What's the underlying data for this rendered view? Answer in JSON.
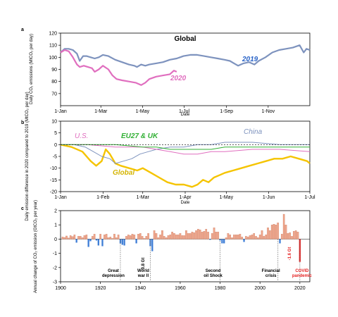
{
  "chart_data": [
    {
      "type": "line",
      "panel_label": "a",
      "title": "Global",
      "xlabel": "Date",
      "ylabel": "Daily CO₂ emissions (MtCO₂ per day)",
      "ylim": [
        60,
        120
      ],
      "yticks": [
        70,
        80,
        90,
        100,
        110,
        120
      ],
      "xticks": [
        "1-Jan",
        "1-Mar",
        "1-May",
        "1-Jul",
        "1-Sep",
        "1-Nov"
      ],
      "xtick_days": [
        0,
        59,
        120,
        181,
        243,
        304
      ],
      "xlim_days": [
        0,
        365
      ],
      "series": [
        {
          "name": "2019",
          "color": "#7e93be",
          "x": [
            0,
            6,
            12,
            18,
            24,
            28,
            33,
            38,
            44,
            50,
            56,
            62,
            70,
            80,
            90,
            100,
            108,
            112,
            118,
            124,
            130,
            140,
            150,
            160,
            170,
            180,
            190,
            200,
            210,
            220,
            230,
            240,
            248,
            254,
            260,
            268,
            276,
            284,
            290,
            300,
            310,
            320,
            330,
            340,
            350,
            356,
            360,
            365
          ],
          "y": [
            104,
            107,
            107,
            106,
            103,
            97,
            101,
            101,
            100,
            99,
            100,
            102,
            101,
            98,
            96,
            94,
            93,
            92,
            94,
            93,
            94,
            95,
            96,
            98,
            99,
            101,
            102,
            102,
            101,
            100,
            99,
            98,
            97,
            95,
            93,
            95,
            96,
            94,
            97,
            100,
            104,
            106,
            107,
            108,
            110,
            104,
            107,
            106
          ]
        },
        {
          "name": "2020",
          "color": "#e06fbf",
          "x": [
            0,
            6,
            12,
            18,
            24,
            28,
            34,
            40,
            46,
            50,
            56,
            62,
            70,
            76,
            82,
            90,
            100,
            110,
            118,
            124,
            130,
            140,
            150,
            160,
            166,
            170
          ],
          "y": [
            104,
            106,
            105,
            100,
            94,
            92,
            93,
            92,
            91,
            88,
            90,
            93,
            90,
            85,
            82,
            81,
            80,
            79,
            77,
            79,
            82,
            84,
            85,
            86,
            89,
            88
          ]
        }
      ]
    },
    {
      "type": "line",
      "panel_label": "b",
      "xlabel": "Date",
      "ylabel": "Daily emission difference in 2020 compared to 2019 (MtCO₂ per day)",
      "ylim": [
        -20,
        10
      ],
      "yticks": [
        -20,
        -15,
        -10,
        -5,
        0,
        5,
        10
      ],
      "xticks": [
        "1-Jan",
        "1-Feb",
        "1-Mar",
        "1-Apr",
        "1-May",
        "1-Jun",
        "1-Jul"
      ],
      "xtick_days": [
        0,
        31,
        60,
        91,
        121,
        152,
        182
      ],
      "xlim_days": [
        0,
        182
      ],
      "series": [
        {
          "name": "Global",
          "color": "#f5c400",
          "x": [
            0,
            8,
            16,
            22,
            26,
            30,
            33,
            36,
            40,
            44,
            50,
            56,
            60,
            66,
            72,
            78,
            84,
            90,
            96,
            100,
            104,
            108,
            112,
            116,
            120,
            126,
            132,
            138,
            144,
            150,
            156,
            162,
            168,
            174,
            180,
            182
          ],
          "y": [
            0,
            -1,
            -3,
            -7,
            -9,
            -7,
            -2,
            -4,
            -8,
            -9,
            -10,
            -11,
            -10,
            -12,
            -14,
            -16,
            -17,
            -17,
            -18,
            -17,
            -15,
            -16,
            -14,
            -13,
            -12,
            -11,
            -10,
            -9,
            -8,
            -7,
            -6,
            -6,
            -5,
            -6,
            -7,
            -8
          ]
        },
        {
          "name": "China",
          "color": "#7e93be",
          "x": [
            0,
            10,
            18,
            24,
            30,
            36,
            40,
            46,
            52,
            58,
            64,
            70,
            80,
            90,
            100,
            110,
            120,
            140,
            160,
            182
          ],
          "y": [
            0,
            0,
            -1,
            -3,
            -5,
            -6,
            -8,
            -7,
            -6,
            -4,
            -3,
            -2,
            -1,
            -1,
            0,
            0,
            1,
            1,
            0,
            0
          ]
        },
        {
          "name": "U.S.",
          "color": "#e06fbf",
          "x": [
            0,
            20,
            40,
            60,
            70,
            80,
            90,
            100,
            110,
            120,
            140,
            160,
            182
          ],
          "y": [
            0,
            0,
            -1,
            -1,
            -2,
            -3,
            -4,
            -4,
            -3,
            -3,
            -2,
            -2,
            -3
          ]
        },
        {
          "name": "EU27 & UK",
          "color": "#32b035",
          "x": [
            0,
            20,
            40,
            60,
            70,
            80,
            90,
            100,
            110,
            120,
            140,
            160,
            182
          ],
          "y": [
            0,
            0,
            0,
            -1,
            -1,
            -2,
            -2,
            -2,
            -2,
            -1,
            -1,
            -1,
            -1
          ]
        }
      ]
    },
    {
      "type": "bar",
      "panel_label": "c",
      "ylabel": "Annual change of CO₂ emission (GtCO₂ per year)",
      "xlim": [
        1900,
        2025
      ],
      "ylim": [
        -3,
        2
      ],
      "yticks": [
        -3,
        -2,
        -1,
        0,
        1,
        2
      ],
      "xticks": [
        1900,
        1920,
        1940,
        1960,
        1980,
        2000,
        2020
      ],
      "years_start": 1901,
      "values": [
        0.15,
        0.12,
        0.22,
        0.08,
        0.25,
        0.18,
        0.3,
        -0.25,
        0.2,
        0.2,
        0.1,
        0.25,
        0.3,
        -0.55,
        -0.15,
        0.2,
        0.35,
        -0.1,
        -0.45,
        0.35,
        -0.5,
        0.3,
        0.35,
        0.1,
        0.15,
        0.05,
        0.35,
        0.1,
        0.3,
        -0.3,
        -0.4,
        -0.45,
        0.2,
        0.3,
        0.25,
        0.35,
        0.3,
        -0.3,
        0.35,
        0.4,
        0.2,
        0.05,
        0.2,
        0.4,
        -0.5,
        -0.85,
        0.6,
        0.4,
        0.1,
        0.3,
        0.6,
        0.2,
        0.1,
        0.25,
        0.3,
        0.5,
        0.4,
        0.3,
        0.3,
        0.4,
        0.25,
        0.25,
        0.6,
        0.4,
        0.4,
        0.5,
        0.45,
        0.6,
        0.7,
        0.65,
        0.5,
        0.55,
        0.7,
        0.5,
        -0.05,
        0.4,
        0.8,
        0.5,
        0.5,
        -0.1,
        -0.3,
        -0.3,
        0.1,
        0.4,
        0.3,
        0.1,
        0.3,
        0.3,
        0.3,
        0.35,
        0.15,
        -0.2,
        0.2,
        0.15,
        0.25,
        0.3,
        0.4,
        0.2,
        0.1,
        0.3,
        0.6,
        0.2,
        0.3,
        0.8,
        0.6,
        1.0,
        1.05,
        1.0,
        1.15,
        -0.3,
        0.35,
        1.75,
        1.0,
        0.4,
        0.45,
        0.2,
        0.55,
        0.6,
        0.5,
        -1.6
      ],
      "negative_color": "#3f7ed6",
      "positive_color": "#f0a58a",
      "highlight_color": "#e52222",
      "events": [
        {
          "year": 1930,
          "label": [
            "Great",
            "depression"
          ]
        },
        {
          "year": 1945,
          "label": [
            "World",
            "war II"
          ]
        },
        {
          "year": 1980,
          "label": [
            "Second",
            "oil Shock"
          ]
        },
        {
          "year": 2009,
          "label": [
            "Financial",
            "crisis"
          ]
        },
        {
          "year": 2020,
          "label": [
            "COVID",
            "pandemic"
          ]
        }
      ],
      "annotations": [
        "-0.8 Gt",
        "-1.6 Gt"
      ]
    }
  ]
}
